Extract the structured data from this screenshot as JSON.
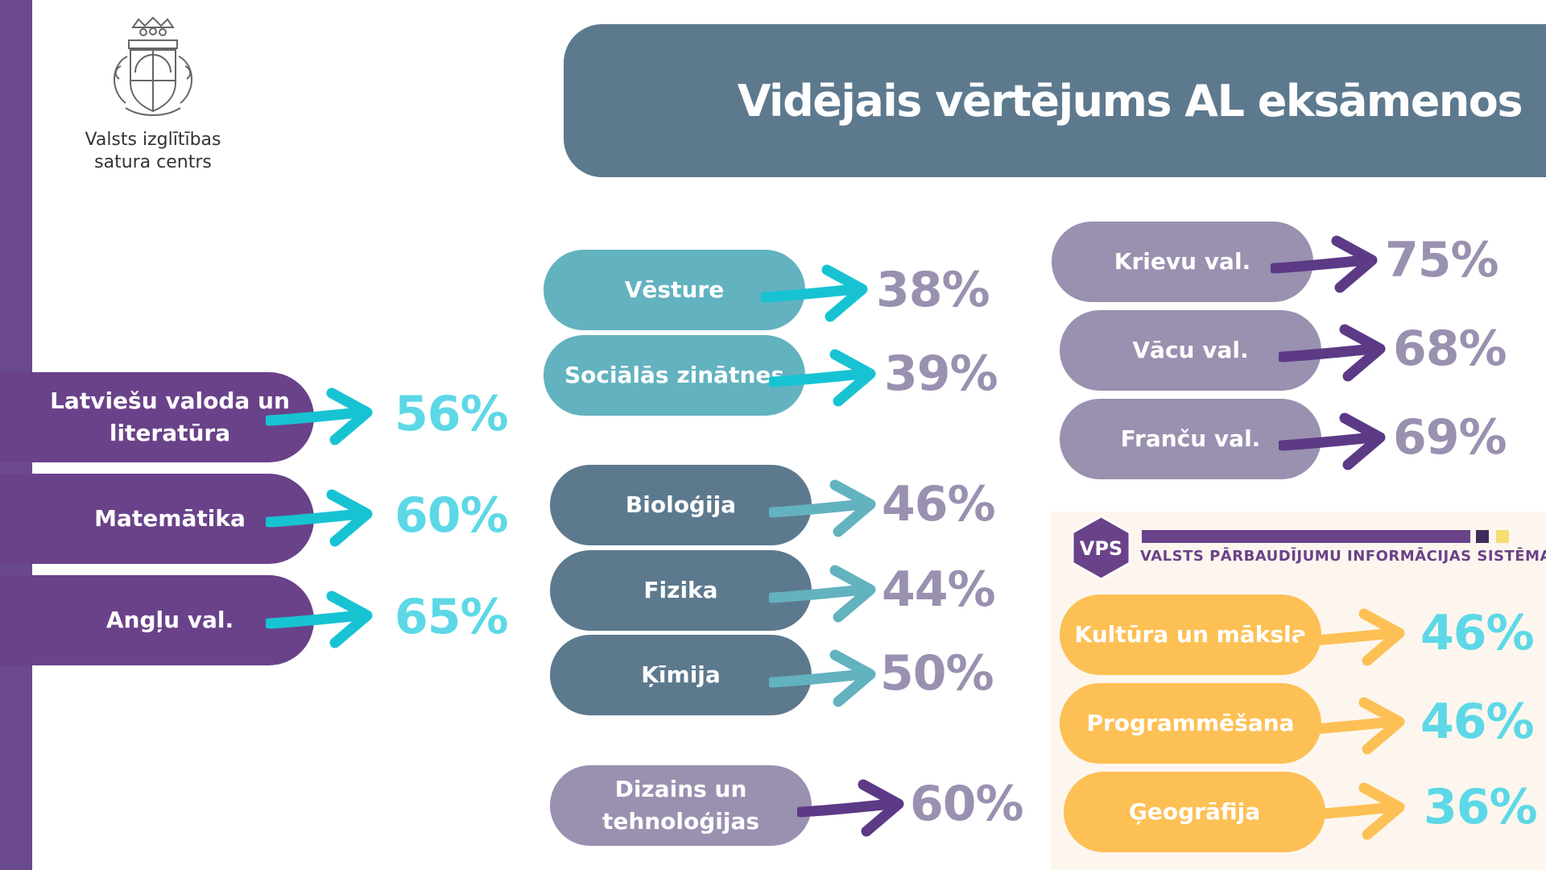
{
  "header": {
    "title": "Vidējais vērtējums AL eksāmenos",
    "logo_text_1": "Valsts izglītības",
    "logo_text_2": "satura centrs"
  },
  "colors": {
    "purple": "#6a4289",
    "teal": "#63b2bf",
    "slate": "#5d798e",
    "lavender": "#9a90b0",
    "orange": "#fdc055",
    "cyan_text": "#5dd8e6"
  },
  "subjects_core": [
    {
      "label": "Latviešu valoda un literatūra",
      "value": "56%"
    },
    {
      "label": "Matemātika",
      "value": "60%"
    },
    {
      "label": "Angļu val.",
      "value": "65%"
    }
  ],
  "subjects_social": [
    {
      "label": "Vēsture",
      "value": "38%"
    },
    {
      "label": "Sociālās zinātnes",
      "value": "39%"
    }
  ],
  "subjects_science": [
    {
      "label": "Bioloģija",
      "value": "46%"
    },
    {
      "label": "Fizika",
      "value": "44%"
    },
    {
      "label": "Ķīmija",
      "value": "50%"
    }
  ],
  "subjects_design": [
    {
      "label": "Dizains un tehnoloģijas",
      "value": "60%"
    }
  ],
  "subjects_languages": [
    {
      "label": "Krievu val.",
      "value": "75%"
    },
    {
      "label": "Vācu val.",
      "value": "68%"
    },
    {
      "label": "Franču val.",
      "value": "69%"
    }
  ],
  "vps": {
    "logo": "VPS",
    "caption": "VALSTS PĀRBAUDĪJUMU INFORMĀCIJAS SISTĒMA",
    "subjects": [
      {
        "label": "Kultūra un māksla",
        "value": "46%"
      },
      {
        "label": "Programmēšana",
        "value": "46%"
      },
      {
        "label": "Ģeogrāfija",
        "value": "36%"
      }
    ]
  }
}
